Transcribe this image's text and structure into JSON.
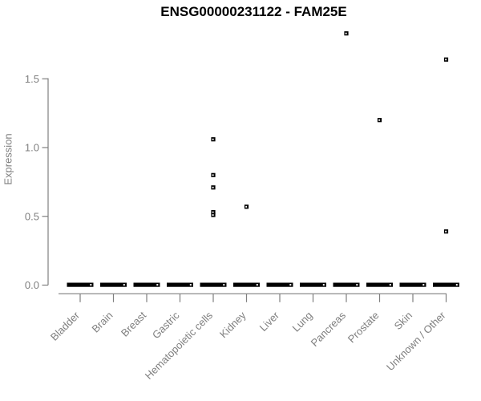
{
  "chart_data": {
    "type": "scatter",
    "title": "ENSG00000231122 - FAM25E",
    "xlabel": "",
    "ylabel": "Expression",
    "ylim": [
      0,
      1.9
    ],
    "yticks": [
      0,
      0.5,
      1.0,
      1.5
    ],
    "ytick_labels": [
      "0.0",
      "0.5",
      "1.0",
      "1.5"
    ],
    "grid": false,
    "legend": false,
    "marker": "small-open-square",
    "colors": {
      "marker": "#000000",
      "axis": "#7f7f7f",
      "title": "#000000",
      "background": "#ffffff"
    },
    "categories": [
      "Bladder",
      "Brain",
      "Breast",
      "Gastric",
      "Hematopoietic cells",
      "Kidney",
      "Liver",
      "Lung",
      "Pancreas",
      "Prostate",
      "Skin",
      "Unknown / Other"
    ],
    "series": [
      {
        "category": "Bladder",
        "zero_cluster": true,
        "values": []
      },
      {
        "category": "Brain",
        "zero_cluster": true,
        "values": []
      },
      {
        "category": "Breast",
        "zero_cluster": true,
        "values": []
      },
      {
        "category": "Gastric",
        "zero_cluster": true,
        "values": []
      },
      {
        "category": "Hematopoietic cells",
        "zero_cluster": true,
        "values": [
          1.06,
          0.8,
          0.71,
          0.53,
          0.51
        ]
      },
      {
        "category": "Kidney",
        "zero_cluster": true,
        "values": [
          0.57
        ]
      },
      {
        "category": "Liver",
        "zero_cluster": true,
        "values": []
      },
      {
        "category": "Lung",
        "zero_cluster": true,
        "values": []
      },
      {
        "category": "Pancreas",
        "zero_cluster": true,
        "values": [
          1.83
        ]
      },
      {
        "category": "Prostate",
        "zero_cluster": true,
        "values": [
          1.2
        ]
      },
      {
        "category": "Skin",
        "zero_cluster": true,
        "values": []
      },
      {
        "category": "Unknown / Other",
        "zero_cluster": true,
        "values": [
          1.64,
          0.39
        ]
      }
    ],
    "zero_cluster_note": "every category shows a dense overplotted cluster of points at expression 0.0"
  }
}
